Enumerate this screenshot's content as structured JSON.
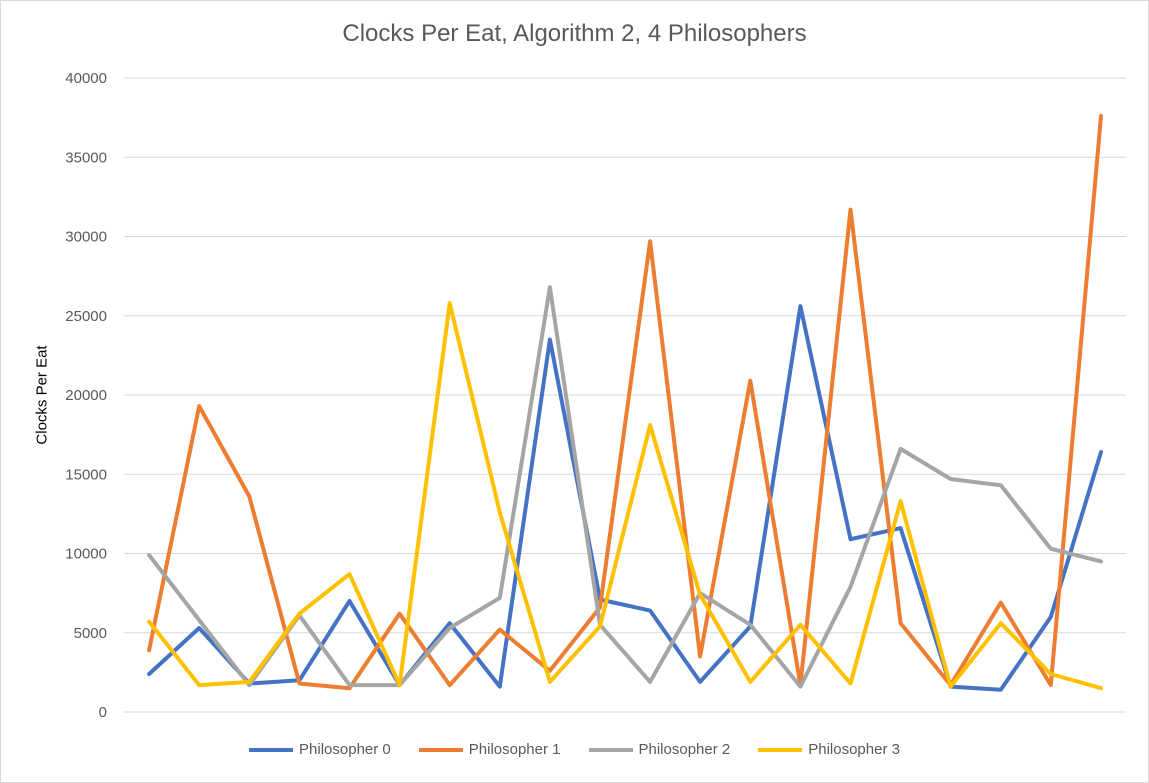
{
  "chart_data": {
    "type": "line",
    "title": "Clocks Per Eat, Algorithm 2, 4 Philosophers",
    "xlabel": "",
    "ylabel": "Clocks Per Eat",
    "ylim": [
      0,
      40000
    ],
    "yticks": [
      "0",
      "5000",
      "10000",
      "15000",
      "20000",
      "25000",
      "30000",
      "35000",
      "40000"
    ],
    "grid": true,
    "legend_position": "bottom",
    "points": 20,
    "series": [
      {
        "name": "Philosopher 0",
        "color": "#4472C4",
        "values": [
          2400,
          5300,
          1800,
          2000,
          7000,
          1700,
          5600,
          1600,
          23500,
          7100,
          6400,
          1900,
          5400,
          25600,
          10900,
          11600,
          1600,
          1400,
          6000,
          16400
        ]
      },
      {
        "name": "Philosopher 1",
        "color": "#ED7D31",
        "values": [
          3900,
          19300,
          13600,
          1800,
          1500,
          6200,
          1700,
          5200,
          2600,
          6600,
          29700,
          3500,
          20900,
          1700,
          31700,
          5600,
          1700,
          6900,
          1700,
          37600
        ]
      },
      {
        "name": "Philosopher 2",
        "color": "#A5A5A5",
        "values": [
          9900,
          5800,
          1700,
          6100,
          1700,
          1700,
          5300,
          7200,
          26800,
          5500,
          1900,
          7500,
          5500,
          1600,
          7900,
          16600,
          14700,
          14300,
          10300,
          9500
        ]
      },
      {
        "name": "Philosopher 3",
        "color": "#FFC000",
        "values": [
          5700,
          1700,
          1900,
          6200,
          8700,
          1700,
          25800,
          12600,
          1900,
          5400,
          18100,
          7400,
          1900,
          5500,
          1800,
          13300,
          1600,
          5600,
          2400,
          1500
        ]
      }
    ]
  }
}
